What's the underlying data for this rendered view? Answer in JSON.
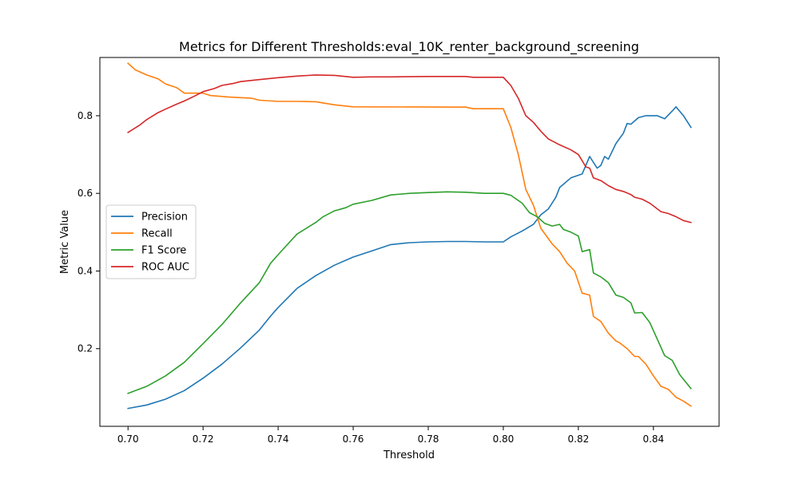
{
  "chart_data": {
    "type": "line",
    "title": "Metrics for Different Thresholds:eval_10K_renter_background_screening",
    "xlabel": "Threshold",
    "ylabel": "Metric Value",
    "xlim": [
      0.6925,
      0.8575
    ],
    "ylim": [
      0.0,
      0.95
    ],
    "xticks": [
      0.7,
      0.72,
      0.74,
      0.76,
      0.78,
      0.8,
      0.82,
      0.84
    ],
    "xtick_labels": [
      "0.70",
      "0.72",
      "0.74",
      "0.76",
      "0.78",
      "0.80",
      "0.82",
      "0.84"
    ],
    "yticks": [
      0.2,
      0.4,
      0.6,
      0.8
    ],
    "ytick_labels": [
      "0.2",
      "0.4",
      "0.6",
      "0.8"
    ],
    "grid": false,
    "legend_position": "center-left",
    "series": [
      {
        "name": "Precision",
        "color": "#1f77b4",
        "points": [
          [
            0.7,
            0.046
          ],
          [
            0.705,
            0.055
          ],
          [
            0.71,
            0.07
          ],
          [
            0.715,
            0.092
          ],
          [
            0.72,
            0.124
          ],
          [
            0.725,
            0.16
          ],
          [
            0.73,
            0.202
          ],
          [
            0.735,
            0.248
          ],
          [
            0.738,
            0.284
          ],
          [
            0.74,
            0.306
          ],
          [
            0.745,
            0.355
          ],
          [
            0.75,
            0.388
          ],
          [
            0.755,
            0.415
          ],
          [
            0.76,
            0.436
          ],
          [
            0.765,
            0.452
          ],
          [
            0.77,
            0.468
          ],
          [
            0.775,
            0.473
          ],
          [
            0.78,
            0.475
          ],
          [
            0.785,
            0.476
          ],
          [
            0.79,
            0.476
          ],
          [
            0.795,
            0.475
          ],
          [
            0.8,
            0.475
          ],
          [
            0.802,
            0.488
          ],
          [
            0.805,
            0.503
          ],
          [
            0.808,
            0.52
          ],
          [
            0.81,
            0.545
          ],
          [
            0.812,
            0.56
          ],
          [
            0.814,
            0.59
          ],
          [
            0.815,
            0.615
          ],
          [
            0.818,
            0.64
          ],
          [
            0.821,
            0.65
          ],
          [
            0.823,
            0.695
          ],
          [
            0.825,
            0.665
          ],
          [
            0.826,
            0.672
          ],
          [
            0.827,
            0.695
          ],
          [
            0.828,
            0.688
          ],
          [
            0.83,
            0.728
          ],
          [
            0.832,
            0.755
          ],
          [
            0.833,
            0.78
          ],
          [
            0.834,
            0.778
          ],
          [
            0.836,
            0.795
          ],
          [
            0.838,
            0.8
          ],
          [
            0.841,
            0.8
          ],
          [
            0.843,
            0.792
          ],
          [
            0.845,
            0.812
          ],
          [
            0.846,
            0.823
          ],
          [
            0.848,
            0.8
          ],
          [
            0.85,
            0.77
          ]
        ]
      },
      {
        "name": "Recall",
        "color": "#ff7f0e",
        "points": [
          [
            0.7,
            0.935
          ],
          [
            0.702,
            0.918
          ],
          [
            0.705,
            0.905
          ],
          [
            0.708,
            0.895
          ],
          [
            0.71,
            0.882
          ],
          [
            0.713,
            0.872
          ],
          [
            0.715,
            0.858
          ],
          [
            0.72,
            0.858
          ],
          [
            0.722,
            0.852
          ],
          [
            0.727,
            0.848
          ],
          [
            0.733,
            0.845
          ],
          [
            0.735,
            0.84
          ],
          [
            0.74,
            0.837
          ],
          [
            0.745,
            0.837
          ],
          [
            0.75,
            0.836
          ],
          [
            0.755,
            0.828
          ],
          [
            0.76,
            0.823
          ],
          [
            0.79,
            0.822
          ],
          [
            0.792,
            0.818
          ],
          [
            0.8,
            0.818
          ],
          [
            0.802,
            0.77
          ],
          [
            0.804,
            0.7
          ],
          [
            0.806,
            0.61
          ],
          [
            0.808,
            0.57
          ],
          [
            0.81,
            0.51
          ],
          [
            0.813,
            0.47
          ],
          [
            0.815,
            0.45
          ],
          [
            0.817,
            0.42
          ],
          [
            0.819,
            0.4
          ],
          [
            0.821,
            0.343
          ],
          [
            0.823,
            0.338
          ],
          [
            0.824,
            0.283
          ],
          [
            0.826,
            0.27
          ],
          [
            0.828,
            0.24
          ],
          [
            0.83,
            0.22
          ],
          [
            0.831,
            0.215
          ],
          [
            0.833,
            0.2
          ],
          [
            0.835,
            0.18
          ],
          [
            0.836,
            0.18
          ],
          [
            0.838,
            0.16
          ],
          [
            0.84,
            0.13
          ],
          [
            0.842,
            0.103
          ],
          [
            0.844,
            0.095
          ],
          [
            0.846,
            0.075
          ],
          [
            0.848,
            0.065
          ],
          [
            0.85,
            0.052
          ]
        ]
      },
      {
        "name": "F1 Score",
        "color": "#2ca02c",
        "points": [
          [
            0.7,
            0.085
          ],
          [
            0.705,
            0.103
          ],
          [
            0.71,
            0.13
          ],
          [
            0.715,
            0.165
          ],
          [
            0.72,
            0.213
          ],
          [
            0.725,
            0.262
          ],
          [
            0.73,
            0.318
          ],
          [
            0.735,
            0.37
          ],
          [
            0.738,
            0.42
          ],
          [
            0.74,
            0.442
          ],
          [
            0.745,
            0.495
          ],
          [
            0.75,
            0.525
          ],
          [
            0.752,
            0.54
          ],
          [
            0.755,
            0.555
          ],
          [
            0.758,
            0.563
          ],
          [
            0.76,
            0.572
          ],
          [
            0.765,
            0.582
          ],
          [
            0.77,
            0.596
          ],
          [
            0.775,
            0.6
          ],
          [
            0.78,
            0.602
          ],
          [
            0.785,
            0.604
          ],
          [
            0.79,
            0.603
          ],
          [
            0.795,
            0.6
          ],
          [
            0.8,
            0.6
          ],
          [
            0.802,
            0.595
          ],
          [
            0.805,
            0.575
          ],
          [
            0.807,
            0.55
          ],
          [
            0.809,
            0.54
          ],
          [
            0.811,
            0.523
          ],
          [
            0.813,
            0.516
          ],
          [
            0.815,
            0.52
          ],
          [
            0.816,
            0.507
          ],
          [
            0.818,
            0.5
          ],
          [
            0.82,
            0.49
          ],
          [
            0.821,
            0.45
          ],
          [
            0.823,
            0.455
          ],
          [
            0.824,
            0.395
          ],
          [
            0.826,
            0.385
          ],
          [
            0.828,
            0.37
          ],
          [
            0.83,
            0.338
          ],
          [
            0.832,
            0.332
          ],
          [
            0.834,
            0.318
          ],
          [
            0.835,
            0.292
          ],
          [
            0.837,
            0.293
          ],
          [
            0.839,
            0.268
          ],
          [
            0.841,
            0.225
          ],
          [
            0.843,
            0.182
          ],
          [
            0.845,
            0.17
          ],
          [
            0.847,
            0.133
          ],
          [
            0.85,
            0.097
          ]
        ]
      },
      {
        "name": "ROC AUC",
        "color": "#d62728",
        "points": [
          [
            0.7,
            0.757
          ],
          [
            0.703,
            0.775
          ],
          [
            0.705,
            0.79
          ],
          [
            0.708,
            0.808
          ],
          [
            0.71,
            0.817
          ],
          [
            0.713,
            0.83
          ],
          [
            0.715,
            0.838
          ],
          [
            0.718,
            0.852
          ],
          [
            0.72,
            0.862
          ],
          [
            0.723,
            0.87
          ],
          [
            0.725,
            0.878
          ],
          [
            0.728,
            0.883
          ],
          [
            0.73,
            0.888
          ],
          [
            0.735,
            0.893
          ],
          [
            0.74,
            0.898
          ],
          [
            0.745,
            0.902
          ],
          [
            0.75,
            0.905
          ],
          [
            0.755,
            0.904
          ],
          [
            0.76,
            0.899
          ],
          [
            0.765,
            0.9
          ],
          [
            0.77,
            0.9
          ],
          [
            0.78,
            0.901
          ],
          [
            0.79,
            0.901
          ],
          [
            0.792,
            0.899
          ],
          [
            0.8,
            0.899
          ],
          [
            0.802,
            0.878
          ],
          [
            0.804,
            0.845
          ],
          [
            0.806,
            0.8
          ],
          [
            0.808,
            0.783
          ],
          [
            0.81,
            0.76
          ],
          [
            0.812,
            0.74
          ],
          [
            0.815,
            0.725
          ],
          [
            0.818,
            0.712
          ],
          [
            0.82,
            0.7
          ],
          [
            0.822,
            0.668
          ],
          [
            0.823,
            0.665
          ],
          [
            0.824,
            0.64
          ],
          [
            0.826,
            0.633
          ],
          [
            0.828,
            0.62
          ],
          [
            0.83,
            0.61
          ],
          [
            0.832,
            0.605
          ],
          [
            0.834,
            0.597
          ],
          [
            0.835,
            0.59
          ],
          [
            0.837,
            0.585
          ],
          [
            0.839,
            0.575
          ],
          [
            0.842,
            0.553
          ],
          [
            0.844,
            0.548
          ],
          [
            0.846,
            0.54
          ],
          [
            0.848,
            0.53
          ],
          [
            0.85,
            0.525
          ]
        ]
      }
    ]
  }
}
